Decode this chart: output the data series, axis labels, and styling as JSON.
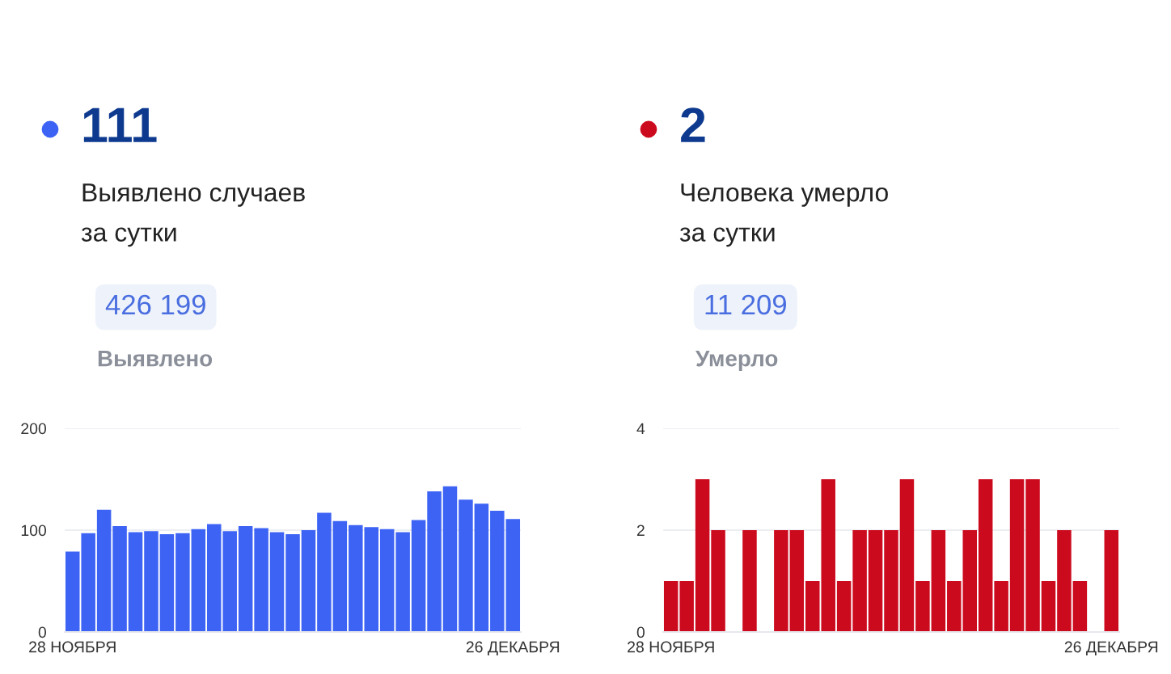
{
  "chart_data": [
    {
      "type": "bar",
      "title": "111",
      "subtitle": "Выявлено случаев\nза сутки",
      "annotations": [
        "426 199",
        "Выявлено"
      ],
      "categories": [
        "28 НОЯБРЯ",
        null,
        null,
        null,
        null,
        null,
        null,
        null,
        null,
        null,
        null,
        null,
        null,
        null,
        null,
        null,
        null,
        null,
        null,
        null,
        null,
        null,
        null,
        null,
        null,
        null,
        null,
        null,
        "26 ДЕКАБРЯ"
      ],
      "values": [
        79,
        97,
        120,
        104,
        98,
        99,
        96,
        97,
        101,
        106,
        99,
        104,
        102,
        98,
        96,
        100,
        117,
        109,
        105,
        103,
        101,
        98,
        110,
        138,
        143,
        130,
        126,
        119,
        111
      ],
      "color": "#3d63f5",
      "ylim": [
        0,
        200
      ],
      "yticks": [
        0,
        100,
        200
      ],
      "grid": "y"
    },
    {
      "type": "bar",
      "title": "2",
      "subtitle": "Человека умерло\nза сутки",
      "annotations": [
        "11 209",
        "Умерло"
      ],
      "categories": [
        "28 НОЯБРЯ",
        null,
        null,
        null,
        null,
        null,
        null,
        null,
        null,
        null,
        null,
        null,
        null,
        null,
        null,
        null,
        null,
        null,
        null,
        null,
        null,
        null,
        null,
        null,
        null,
        null,
        null,
        null,
        "26 ДЕКАБРЯ"
      ],
      "values": [
        1,
        1,
        3,
        2,
        0,
        2,
        0,
        2,
        2,
        1,
        3,
        1,
        2,
        2,
        2,
        3,
        1,
        2,
        1,
        2,
        3,
        1,
        3,
        3,
        1,
        2,
        1,
        0,
        2
      ],
      "color": "#cc0a1e",
      "ylim": [
        0,
        4
      ],
      "yticks": [
        0,
        2,
        4
      ],
      "grid": "y"
    }
  ]
}
